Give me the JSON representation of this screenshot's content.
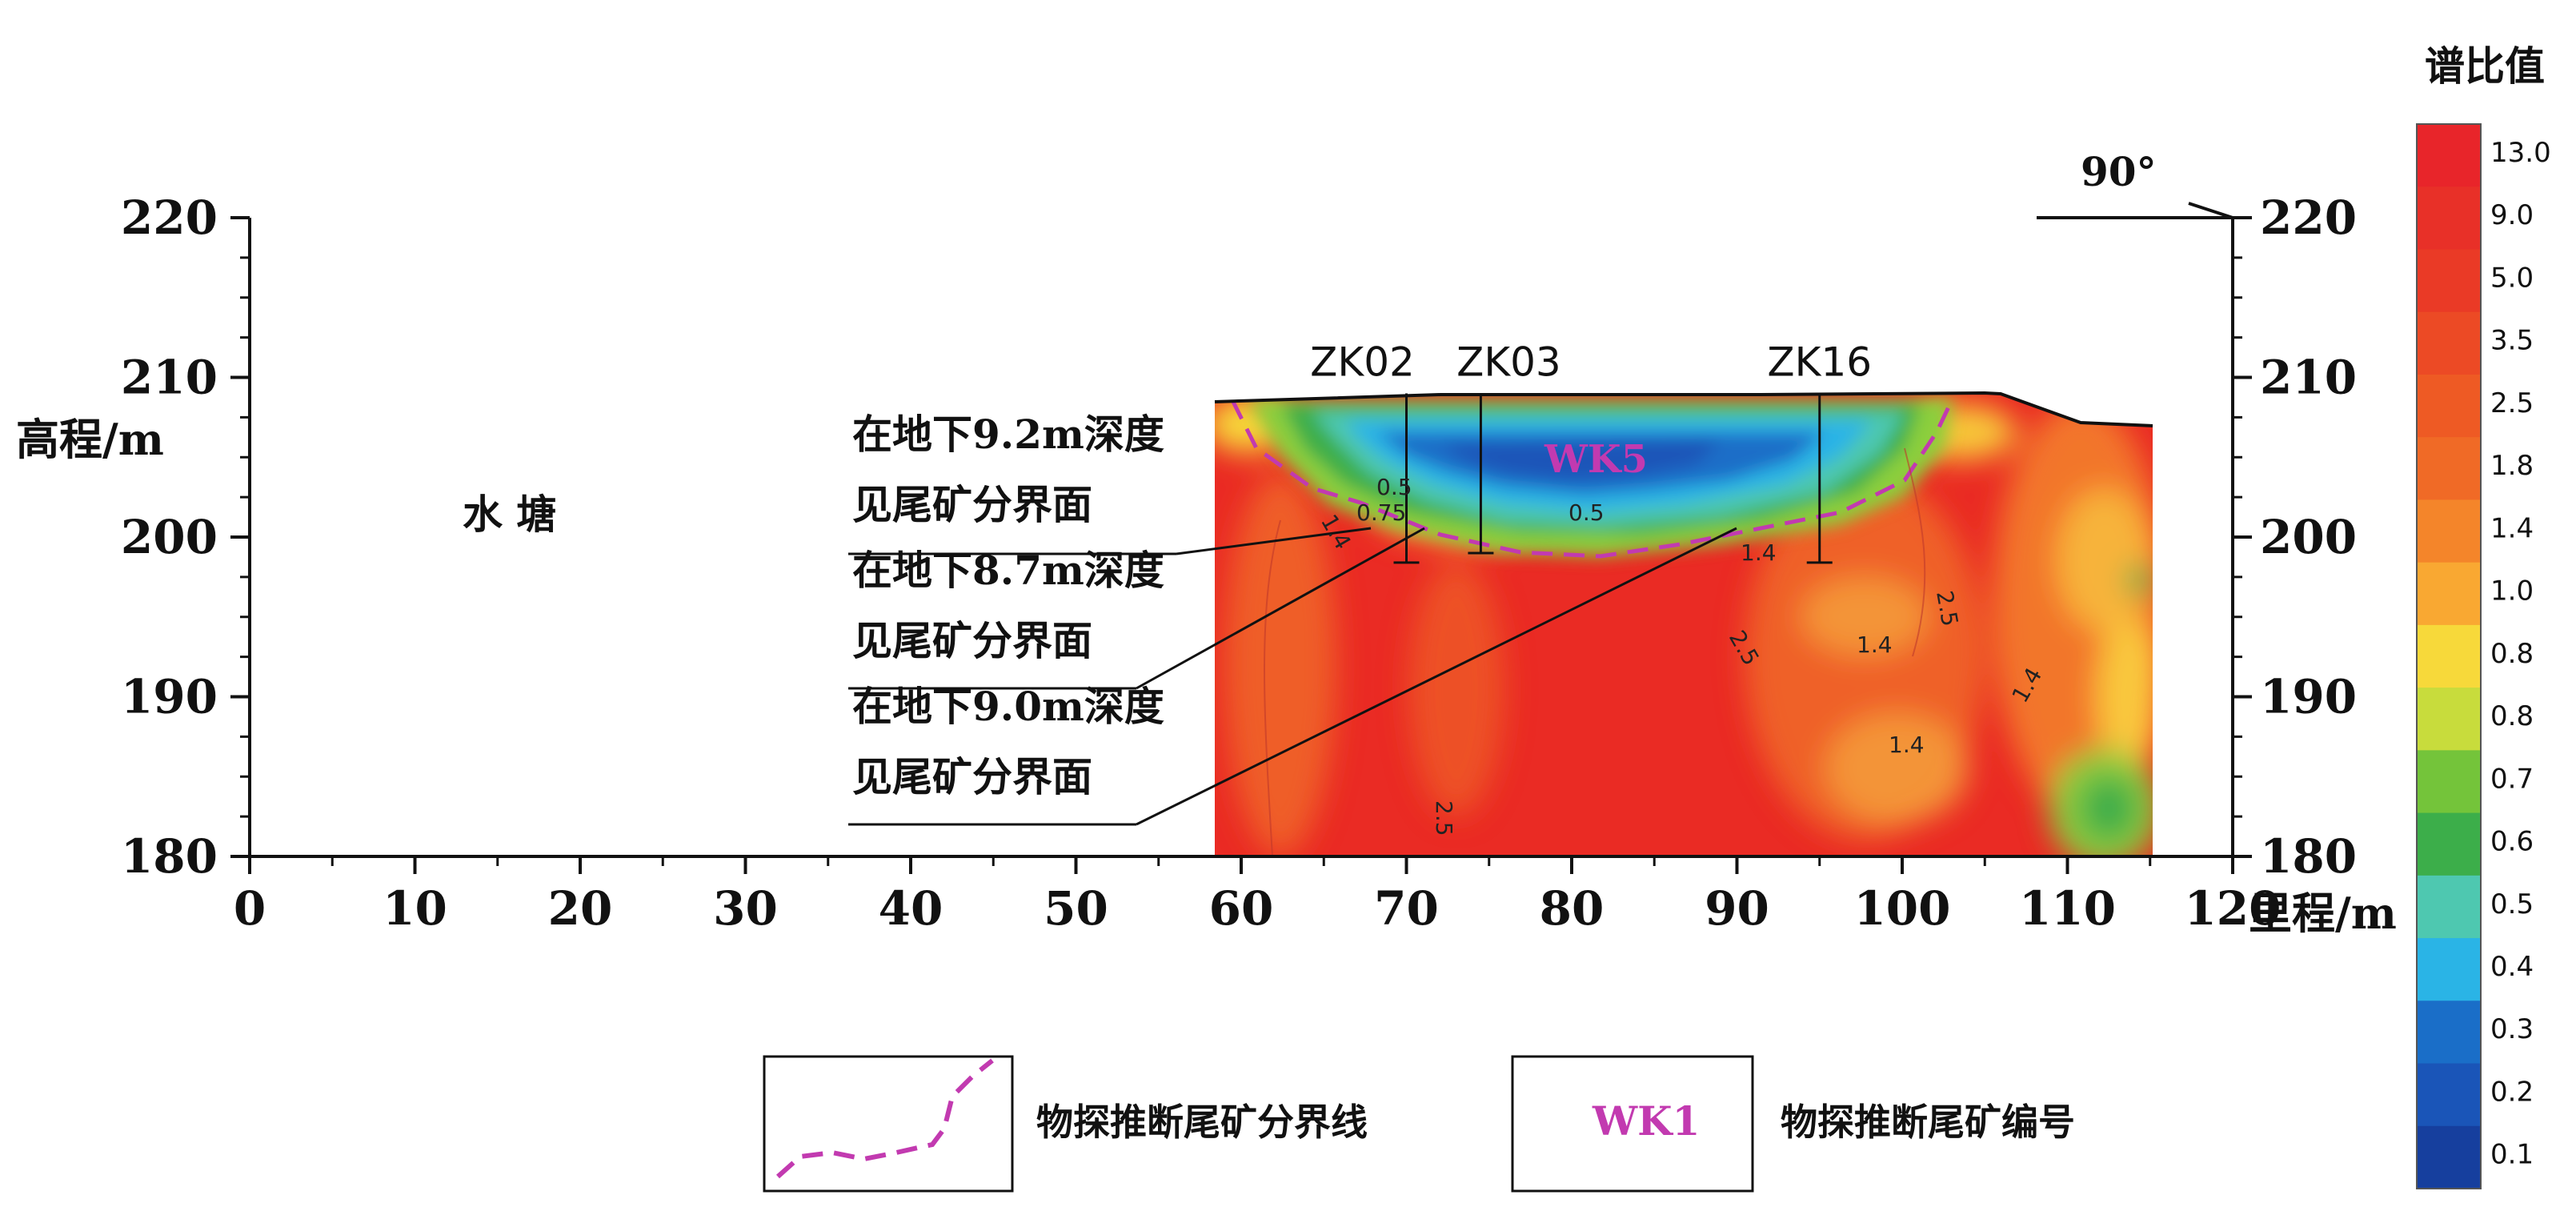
{
  "chart_data": {
    "type": "heatmap",
    "xlabel": "里程/m",
    "ylabel": "高程/m",
    "xlim": [
      0,
      120
    ],
    "ylim": [
      180,
      220
    ],
    "x_ticks": [
      "0",
      "10",
      "20",
      "30",
      "40",
      "50",
      "60",
      "70",
      "80",
      "90",
      "100",
      "110",
      "120"
    ],
    "y_ticks_left": [
      "180",
      "190",
      "200",
      "210",
      "220"
    ],
    "y_ticks_right": [
      "180",
      "190",
      "200",
      "210",
      "220"
    ],
    "angle_label": "90°",
    "area_label": "水 塘",
    "survey_x_range": [
      60.5,
      120
    ],
    "drillholes": [
      {
        "name": "ZK02",
        "x": 70,
        "top": 209,
        "bottom": 198.4
      },
      {
        "name": "ZK03",
        "x": 74.5,
        "top": 209,
        "bottom": 199
      },
      {
        "name": "ZK16",
        "x": 95,
        "top": 209,
        "bottom": 198.4
      }
    ],
    "annotations": [
      {
        "line1": "在地下9.2m深度",
        "line2": "见尾矿分界面"
      },
      {
        "line1": "在地下8.7m深度",
        "line2": "见尾矿分界面"
      },
      {
        "line1": "在地下9.0m深度",
        "line2": "见尾矿分界面"
      }
    ],
    "tailings_id": "WK5",
    "contour_labels": [
      "0.5",
      "0.5",
      "0.75",
      "1.4",
      "1.4",
      "2.5",
      "1.4",
      "2.5",
      "1.4",
      "1.4",
      "2.5"
    ],
    "colorbar": {
      "title": "谱比值",
      "levels": [
        "13.0",
        "9.0",
        "5.0",
        "3.5",
        "2.5",
        "1.8",
        "1.4",
        "1.0",
        "0.8",
        "0.8",
        "0.7",
        "0.6",
        "0.5",
        "0.4",
        "0.3",
        "0.2",
        "0.1"
      ],
      "colors": [
        "#e8252a",
        "#e83028",
        "#ea3a26",
        "#ec4a25",
        "#ee5a24",
        "#f06a26",
        "#f4852a",
        "#f9a832",
        "#f7d93a",
        "#c8dc3c",
        "#74c43a",
        "#3cae4a",
        "#4ec8b0",
        "#2ab4e6",
        "#1a6ec8",
        "#1a55b8",
        "#163f9e"
      ]
    },
    "legend": [
      {
        "symbol": "dashed-magenta-line",
        "label": "物探推断尾矿分界线"
      },
      {
        "symbol": "WK1",
        "label": "物探推断尾矿编号"
      }
    ]
  }
}
